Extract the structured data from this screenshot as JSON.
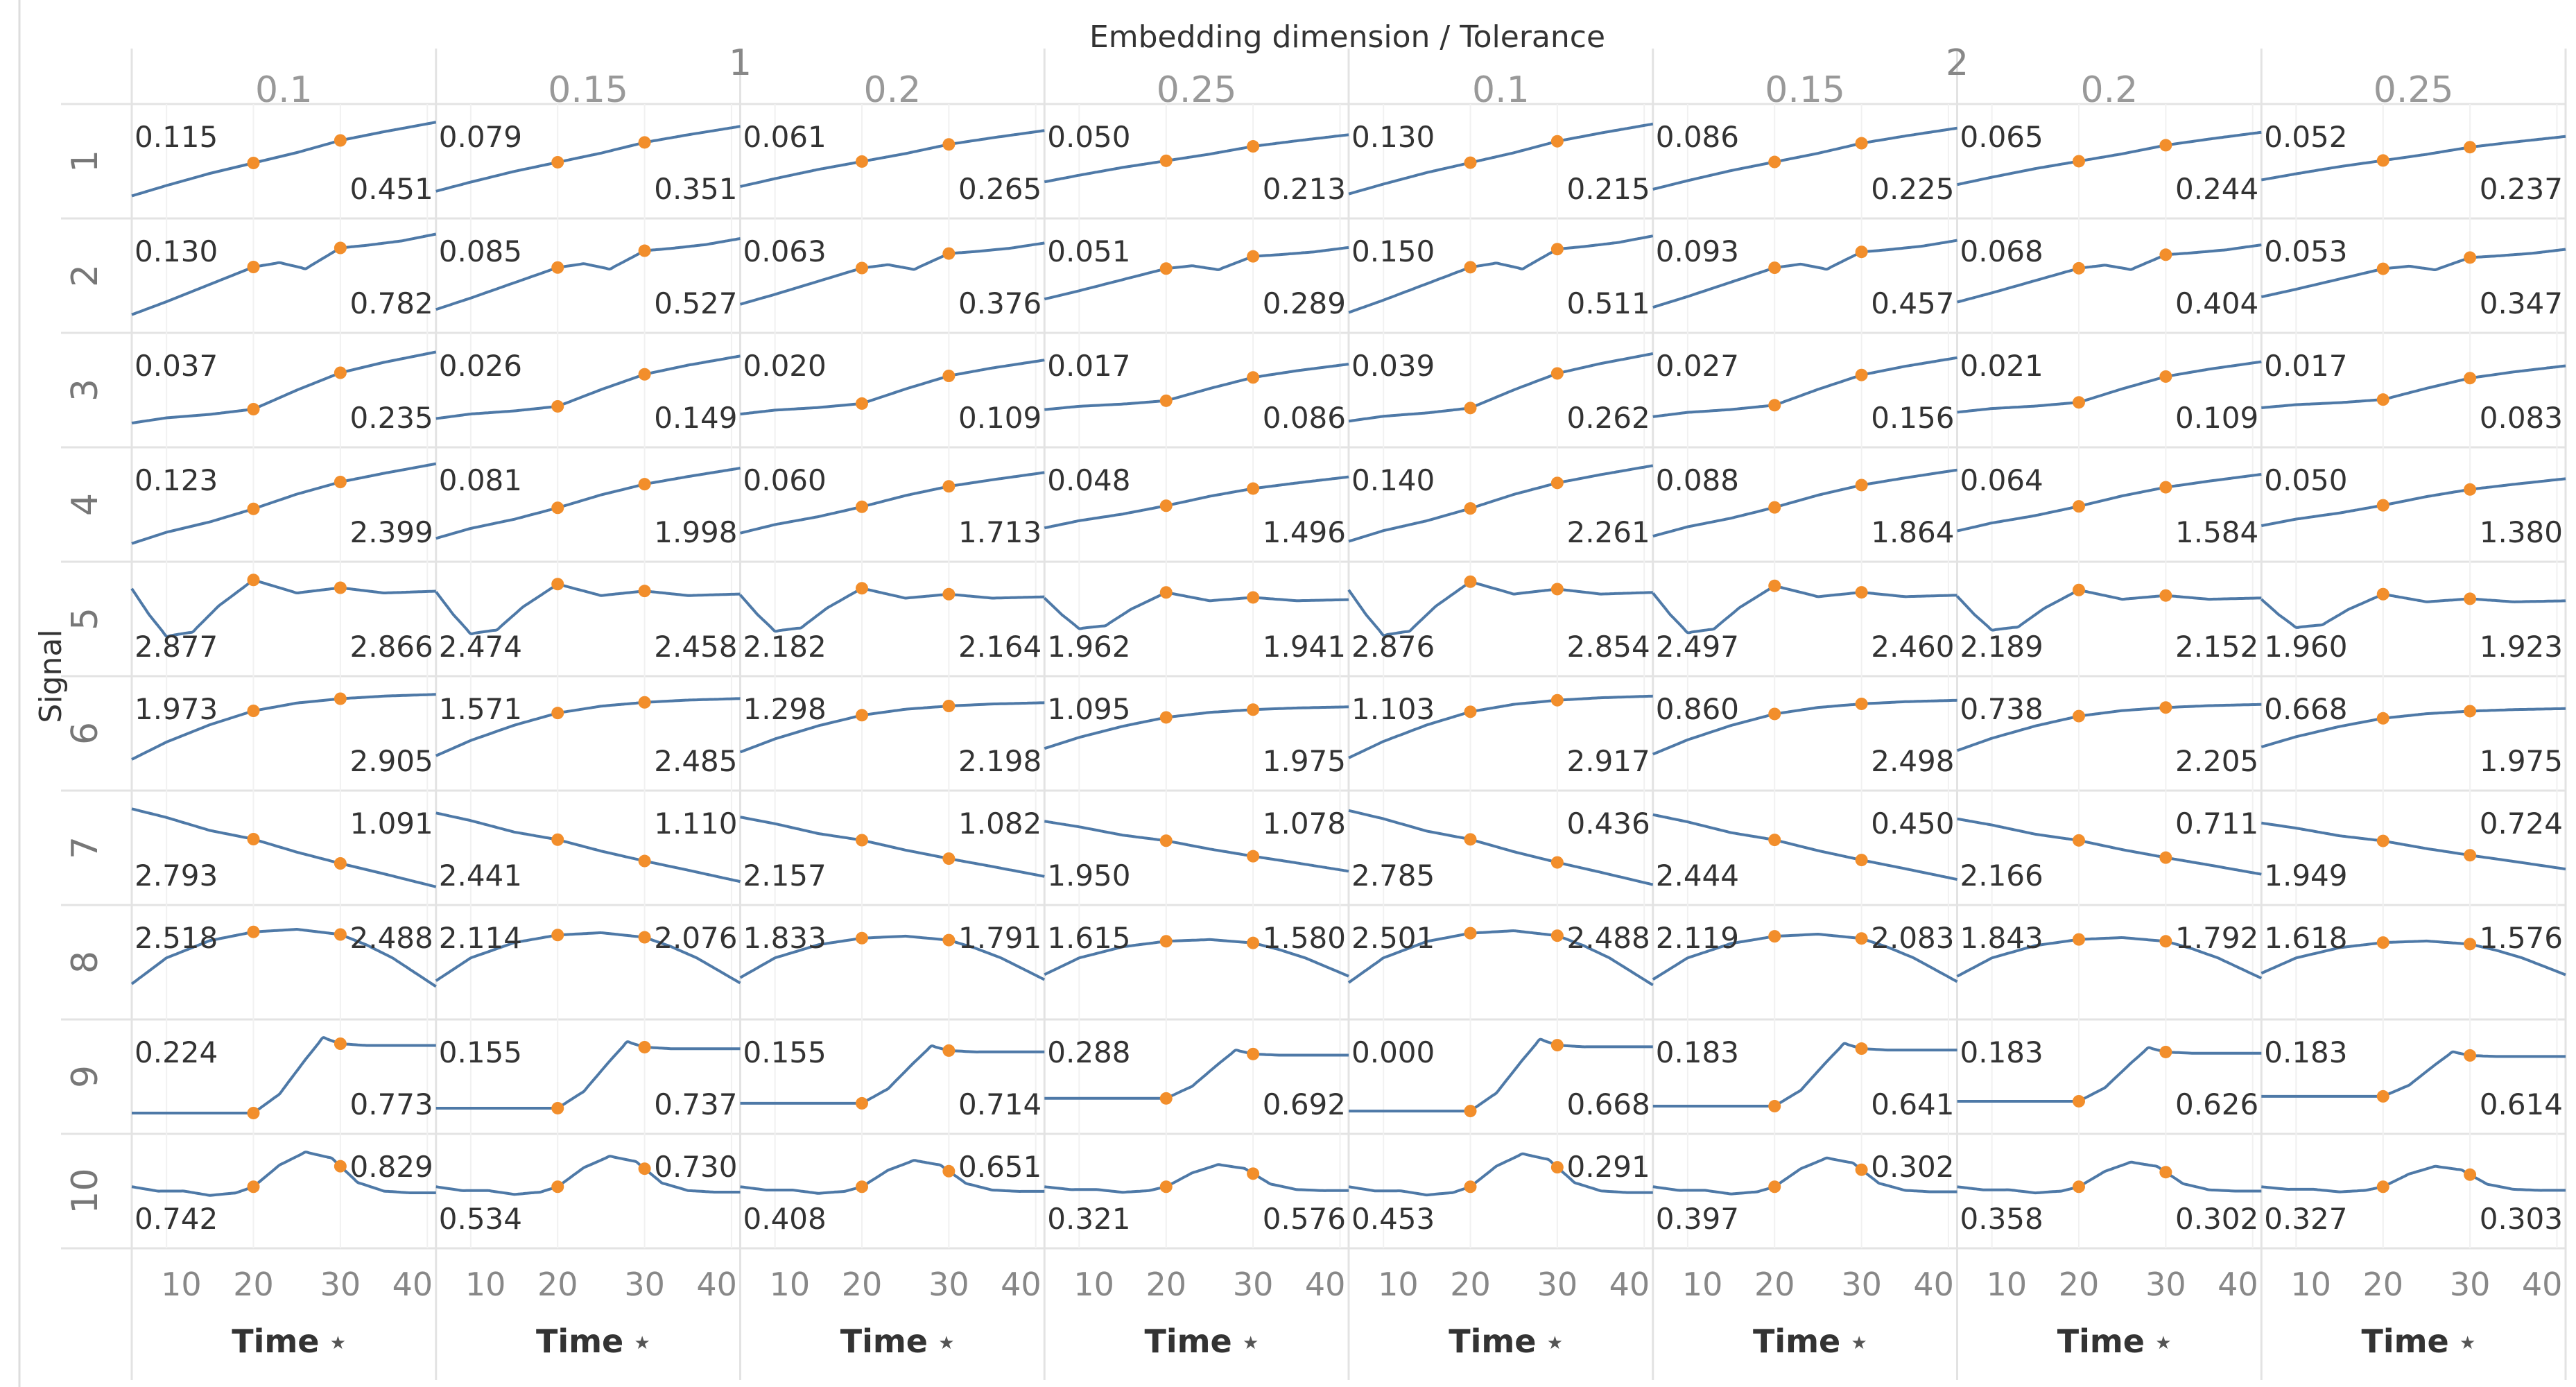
{
  "chart_data": {
    "type": "line",
    "title": "Embedding dimension / Tolerance",
    "row_axis_title": "Signal",
    "x_axis_title": "Time",
    "x_axis_icon": "sort-icon",
    "x_range": [
      6,
      41
    ],
    "x_ticks": [
      "10",
      "20",
      "30",
      "40"
    ],
    "line_color": "#4e79a7",
    "marker_color": "#f28e2b",
    "marker_times": [
      20,
      30
    ],
    "embedding_dimensions": [
      {
        "label": "1",
        "tolerances": [
          "0.1",
          "0.15",
          "0.2",
          "0.25"
        ]
      },
      {
        "label": "2",
        "tolerances": [
          "0.1",
          "0.15",
          "0.2",
          "0.25"
        ]
      }
    ],
    "signals": [
      "1",
      "2",
      "3",
      "4",
      "5",
      "6",
      "7",
      "8",
      "9",
      "10"
    ],
    "start_labels": [
      [
        "0.115",
        "0.079",
        "0.061",
        "0.050",
        "0.130",
        "0.086",
        "0.065",
        "0.052"
      ],
      [
        "0.130",
        "0.085",
        "0.063",
        "0.051",
        "0.150",
        "0.093",
        "0.068",
        "0.053"
      ],
      [
        "0.037",
        "0.026",
        "0.020",
        "0.017",
        "0.039",
        "0.027",
        "0.021",
        "0.017"
      ],
      [
        "0.123",
        "0.081",
        "0.060",
        "0.048",
        "0.140",
        "0.088",
        "0.064",
        "0.050"
      ],
      [
        "2.877",
        "2.474",
        "2.182",
        "1.962",
        "2.876",
        "2.497",
        "2.189",
        "1.960"
      ],
      [
        "1.973",
        "1.571",
        "1.298",
        "1.095",
        "1.103",
        "0.860",
        "0.738",
        "0.668"
      ],
      [
        "2.793",
        "2.441",
        "2.157",
        "1.950",
        "2.785",
        "2.444",
        "2.166",
        "1.949"
      ],
      [
        "2.518",
        "2.114",
        "1.833",
        "1.615",
        "2.501",
        "2.119",
        "1.843",
        "1.618"
      ],
      [
        "0.224",
        "0.155",
        "0.155",
        "0.288",
        "0.000",
        "0.183",
        "0.183",
        "0.183"
      ],
      [
        "0.742",
        "0.534",
        "0.408",
        "0.321",
        "0.453",
        "0.397",
        "0.358",
        "0.327"
      ]
    ],
    "end_labels": [
      [
        "0.451",
        "0.351",
        "0.265",
        "0.213",
        "0.215",
        "0.225",
        "0.244",
        "0.237"
      ],
      [
        "0.782",
        "0.527",
        "0.376",
        "0.289",
        "0.511",
        "0.457",
        "0.404",
        "0.347"
      ],
      [
        "0.235",
        "0.149",
        "0.109",
        "0.086",
        "0.262",
        "0.156",
        "0.109",
        "0.083"
      ],
      [
        "2.399",
        "1.998",
        "1.713",
        "1.496",
        "2.261",
        "1.864",
        "1.584",
        "1.380"
      ],
      [
        "2.866",
        "2.458",
        "2.164",
        "1.941",
        "2.854",
        "2.460",
        "2.152",
        "1.923"
      ],
      [
        "2.905",
        "2.485",
        "2.198",
        "1.975",
        "2.917",
        "2.498",
        "2.205",
        "1.975"
      ],
      [
        "1.091",
        "1.110",
        "1.082",
        "1.078",
        "0.436",
        "0.450",
        "0.711",
        "0.724"
      ],
      [
        "2.488",
        "2.076",
        "1.791",
        "1.580",
        "2.488",
        "2.083",
        "1.792",
        "1.576"
      ],
      [
        "0.773",
        "0.737",
        "0.714",
        "0.692",
        "0.668",
        "0.641",
        "0.626",
        "0.614"
      ],
      [
        "0.829",
        "0.730",
        "0.651",
        "0.576",
        "0.291",
        "0.302",
        "0.302",
        "0.303"
      ]
    ],
    "series_shapes": [
      {
        "signal": "1",
        "x": [
          6,
          10,
          15,
          20,
          25,
          30,
          35,
          41
        ],
        "y": [
          0.1,
          0.22,
          0.36,
          0.48,
          0.6,
          0.74,
          0.84,
          0.95
        ]
      },
      {
        "signal": "2",
        "x": [
          6,
          10,
          15,
          20,
          23,
          26,
          30,
          33,
          37,
          41
        ],
        "y": [
          0.05,
          0.2,
          0.4,
          0.6,
          0.65,
          0.58,
          0.82,
          0.85,
          0.9,
          0.98
        ]
      },
      {
        "signal": "3",
        "x": [
          6,
          10,
          15,
          20,
          25,
          30,
          35,
          41
        ],
        "y": [
          0.12,
          0.18,
          0.22,
          0.28,
          0.5,
          0.7,
          0.82,
          0.94
        ]
      },
      {
        "signal": "4",
        "x": [
          6,
          10,
          15,
          20,
          25,
          30,
          35,
          41
        ],
        "y": [
          0.05,
          0.18,
          0.3,
          0.45,
          0.62,
          0.76,
          0.86,
          0.97
        ]
      },
      {
        "signal": "5",
        "x": [
          6,
          8,
          10,
          13,
          16,
          20,
          25,
          30,
          35,
          41
        ],
        "y": [
          0.85,
          0.55,
          0.3,
          0.35,
          0.65,
          0.95,
          0.8,
          0.86,
          0.8,
          0.82
        ]
      },
      {
        "signal": "6",
        "x": [
          6,
          10,
          15,
          20,
          25,
          30,
          35,
          41
        ],
        "y": [
          0.2,
          0.4,
          0.6,
          0.76,
          0.85,
          0.9,
          0.93,
          0.95
        ]
      },
      {
        "signal": "7",
        "x": [
          6,
          10,
          15,
          20,
          25,
          30,
          35,
          41
        ],
        "y": [
          0.95,
          0.85,
          0.7,
          0.6,
          0.45,
          0.32,
          0.2,
          0.05
        ]
      },
      {
        "signal": "8",
        "x": [
          6,
          10,
          15,
          20,
          25,
          30,
          33,
          36,
          41
        ],
        "y": [
          0.25,
          0.55,
          0.75,
          0.85,
          0.88,
          0.82,
          0.7,
          0.55,
          0.22
        ]
      },
      {
        "signal": "9",
        "x": [
          6,
          10,
          15,
          20,
          23,
          26,
          28,
          30,
          33,
          37,
          41
        ],
        "y": [
          0.08,
          0.08,
          0.08,
          0.08,
          0.3,
          0.7,
          0.95,
          0.88,
          0.86,
          0.86,
          0.86
        ]
      },
      {
        "signal": "10",
        "x": [
          6,
          9,
          12,
          15,
          18,
          20,
          23,
          26,
          29,
          32,
          35,
          38,
          41
        ],
        "y": [
          0.55,
          0.5,
          0.5,
          0.45,
          0.48,
          0.55,
          0.8,
          0.95,
          0.88,
          0.6,
          0.5,
          0.48,
          0.48
        ]
      }
    ]
  }
}
